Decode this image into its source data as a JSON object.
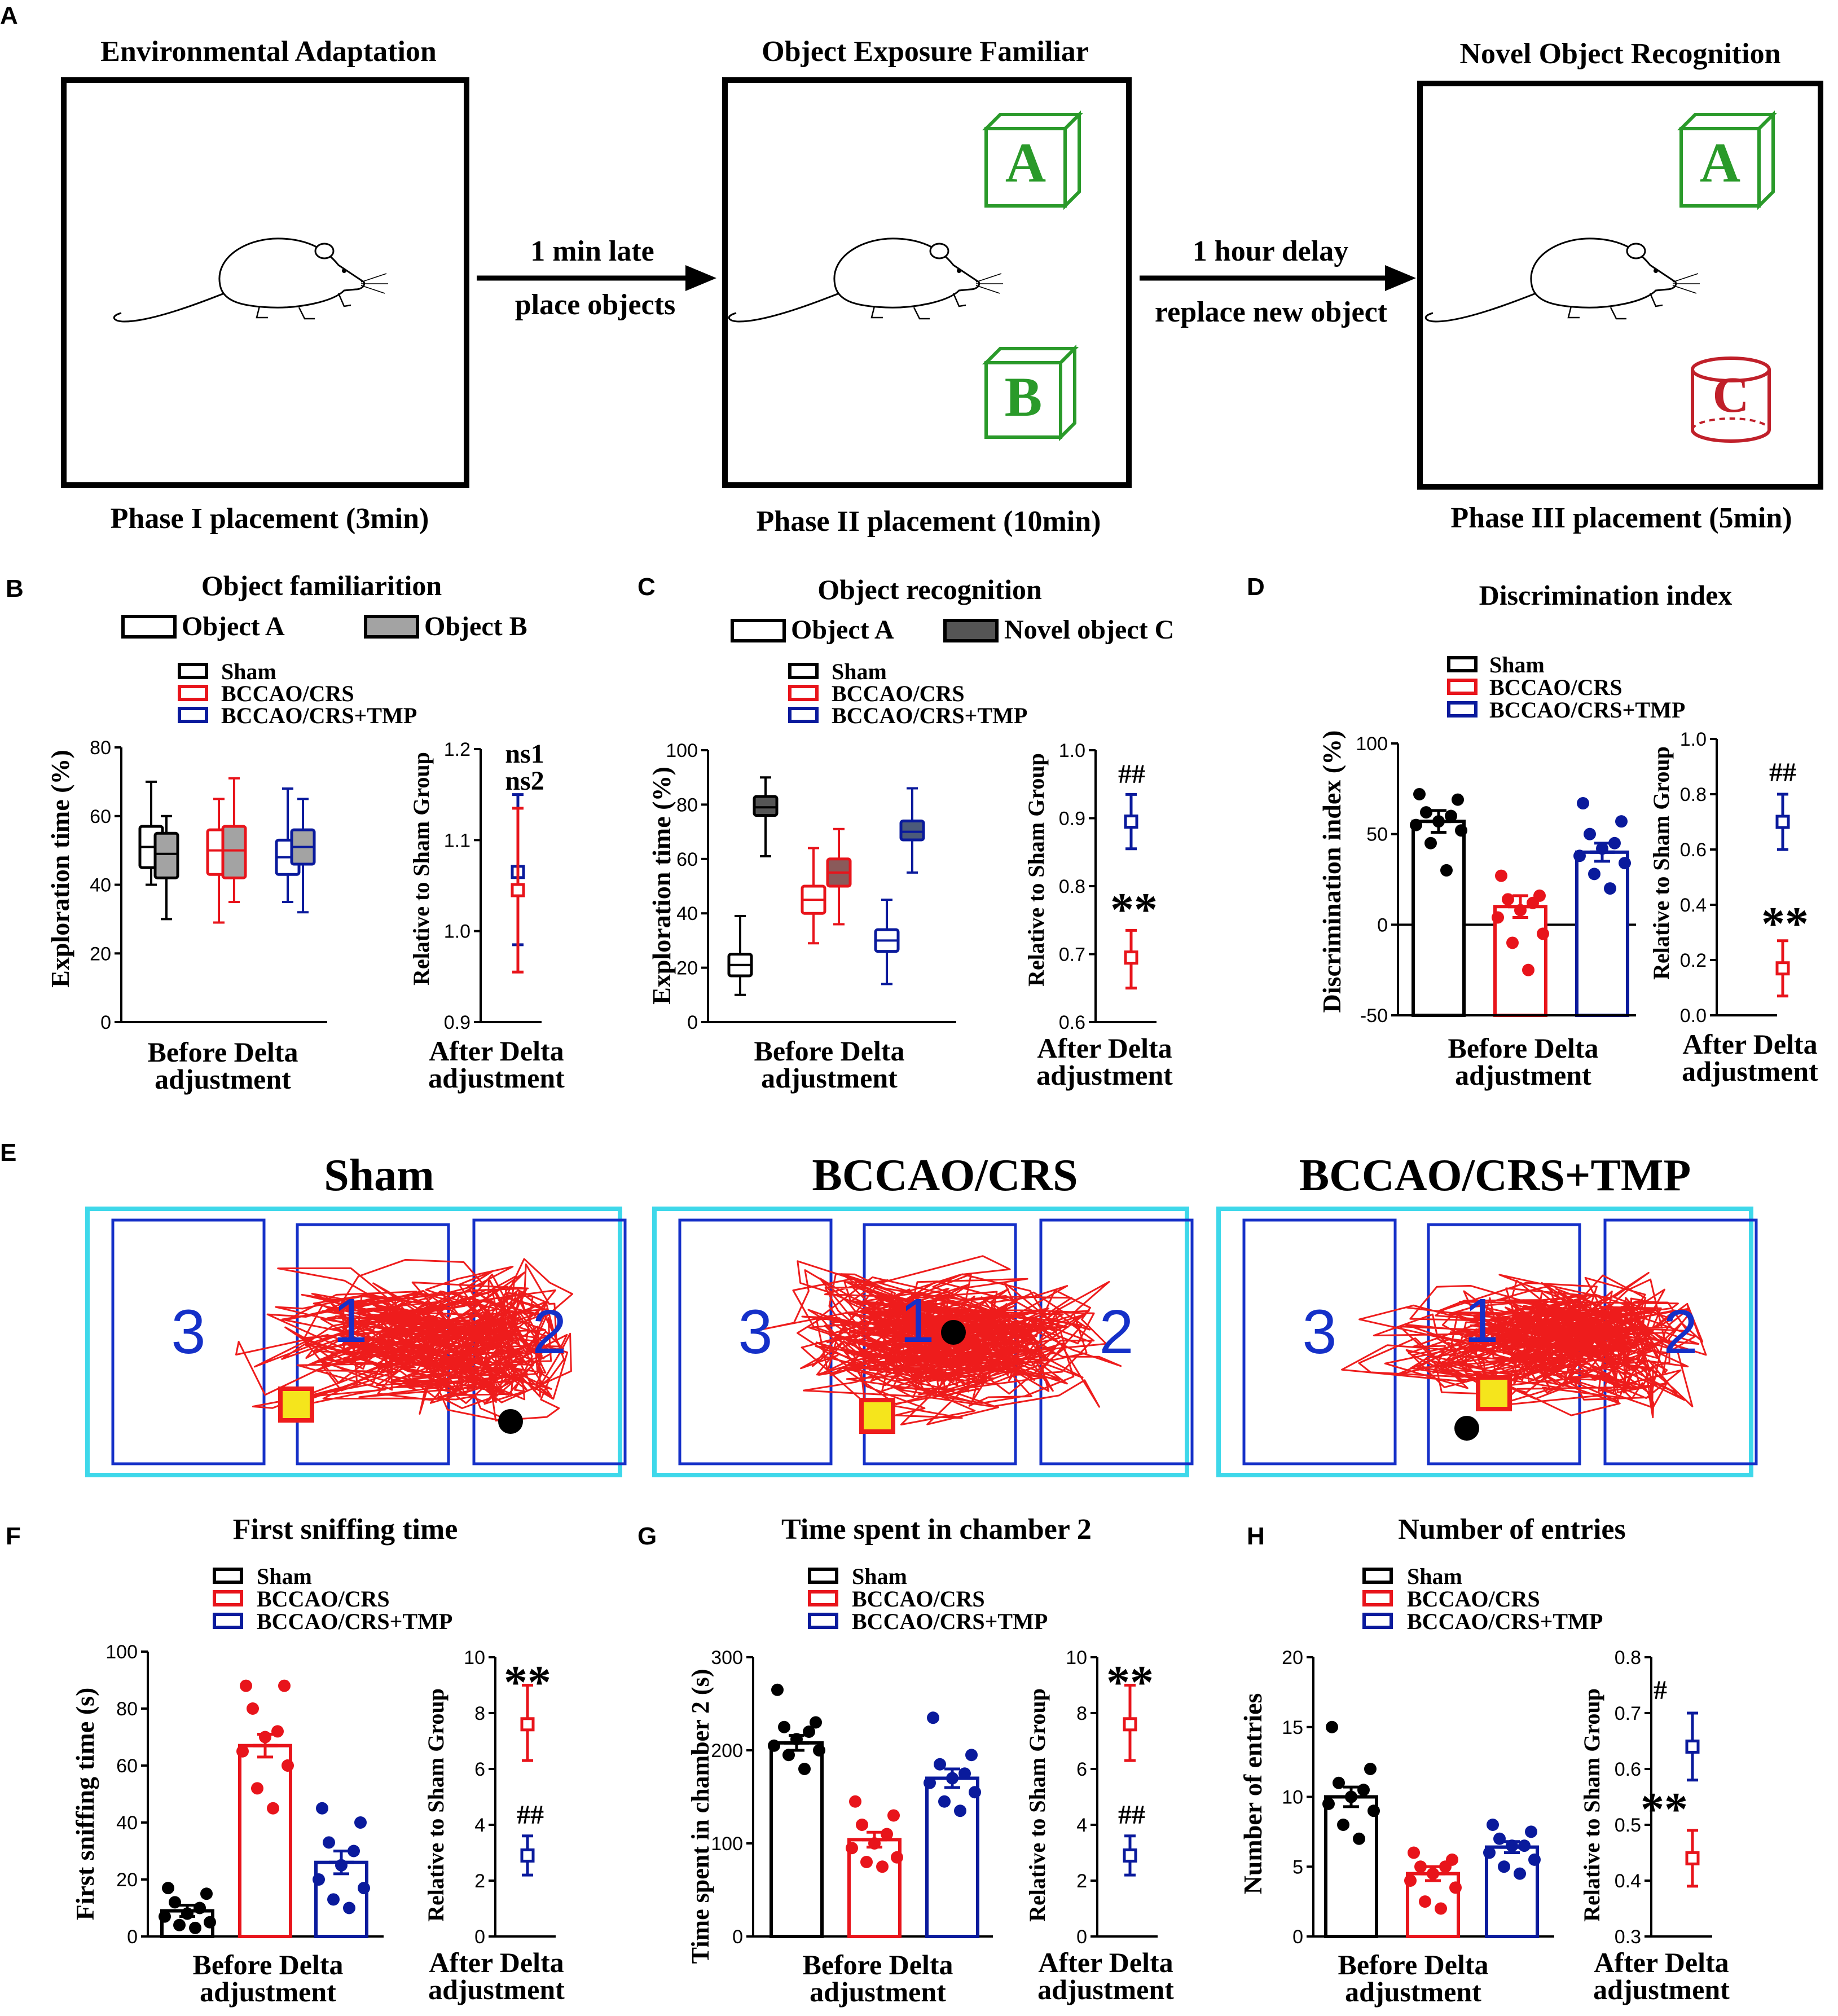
{
  "panel_letters": {
    "a": "A",
    "b": "B",
    "c": "C",
    "d": "D",
    "e": "E",
    "f": "F",
    "g": "G",
    "h": "H"
  },
  "colors": {
    "sham": "#000000",
    "crs": "#e8141b",
    "tmp": "#0a1a9c",
    "green": "#2a9a2a",
    "cyl": "#c0202a",
    "cyan": "#3ed8ea",
    "track": "#ee1c1c",
    "zone": "#1530c8"
  },
  "panel_a": {
    "phases": [
      {
        "title": "Environmental Adaptation",
        "caption": "Phase I placement (3min)"
      },
      {
        "title": "Object Exposure Familiar",
        "caption": "Phase II placement (10min)",
        "objects": [
          "A",
          "B"
        ]
      },
      {
        "title": "Novel Object Recognition",
        "caption": "Phase III placement (5min)",
        "objects": [
          "A",
          "C"
        ]
      }
    ],
    "arrow1": {
      "top": "1 min late",
      "bottom": "place objects"
    },
    "arrow2": {
      "top": "1 hour delay",
      "bottom": "replace new object"
    }
  },
  "legend": {
    "sham": "Sham",
    "crs": "BCCAO/CRS",
    "tmp": "BCCAO/CRS+TMP"
  },
  "common": {
    "before": "Before Delta",
    "after": "After Delta",
    "adjustment": "adjustment",
    "relative": "Relative to Sham Group"
  },
  "panel_b": {
    "title": "Object familiarition",
    "leg1": "Object A",
    "leg2": "Object B",
    "ylabel": "Exploration time (%)",
    "sig1": "ns1",
    "sig2": "ns2"
  },
  "panel_c": {
    "title": "Object recognition",
    "leg1": "Object A",
    "leg2": "Novel object C",
    "ylabel": "Exploration time (%)",
    "sig1": "##",
    "sig2": "**"
  },
  "panel_d": {
    "title": "Discrimination index",
    "ylabel": "Discrimination index (%)",
    "sig1": "##",
    "sig2": "**"
  },
  "panel_e": {
    "titles": [
      "Sham",
      "BCCAO/CRS",
      "BCCAO/CRS+TMP"
    ],
    "zones": [
      "3",
      "1",
      "2"
    ]
  },
  "panel_f": {
    "title": "First sniffing time",
    "ylabel": "First sniffing time (s)",
    "sig1": "**",
    "sig2": "##"
  },
  "panel_g": {
    "title": "Time spent in chamber 2",
    "ylabel": "Time spent in chamber 2 (s)",
    "sig1": "**",
    "sig2": "##"
  },
  "panel_h": {
    "title": "Number of entries",
    "ylabel": "Number of entries",
    "sig1": "#",
    "sig2": "**"
  },
  "chart_data": [
    {
      "id": "B-left",
      "type": "box",
      "ylim": [
        0,
        80
      ],
      "yticks": [
        "0",
        "20",
        "40",
        "60",
        "80"
      ],
      "boxes": [
        {
          "group": "sham",
          "object": "A",
          "min": 40,
          "q1": 45,
          "med": 51,
          "q3": 57,
          "max": 70
        },
        {
          "group": "sham",
          "object": "B",
          "min": 30,
          "q1": 42,
          "med": 49,
          "q3": 55,
          "max": 60
        },
        {
          "group": "crs",
          "object": "A",
          "min": 29,
          "q1": 43,
          "med": 50,
          "q3": 56,
          "max": 65
        },
        {
          "group": "crs",
          "object": "B",
          "min": 35,
          "q1": 42,
          "med": 50,
          "q3": 57,
          "max": 71
        },
        {
          "group": "tmp",
          "object": "A",
          "min": 35,
          "q1": 43,
          "med": 48,
          "q3": 53,
          "max": 68
        },
        {
          "group": "tmp",
          "object": "B",
          "min": 32,
          "q1": 46,
          "med": 51,
          "q3": 56,
          "max": 65
        }
      ]
    },
    {
      "id": "B-right",
      "type": "errorbar",
      "ylim": [
        0.9,
        1.2
      ],
      "yticks": [
        "0.9",
        "1.0",
        "1.1",
        "1.2"
      ],
      "points": [
        {
          "group": "tmp",
          "value": 1.065,
          "low": 0.985,
          "high": 1.15
        },
        {
          "group": "crs",
          "value": 1.045,
          "low": 0.955,
          "high": 1.135
        }
      ]
    },
    {
      "id": "C-left",
      "type": "box",
      "ylim": [
        0,
        100
      ],
      "yticks": [
        "0",
        "20",
        "40",
        "60",
        "80",
        "100"
      ],
      "boxes": [
        {
          "group": "sham",
          "object": "A",
          "min": 10,
          "q1": 17,
          "med": 21,
          "q3": 25,
          "max": 39
        },
        {
          "group": "sham",
          "object": "C",
          "min": 61,
          "q1": 76,
          "med": 79,
          "q3": 83,
          "max": 90
        },
        {
          "group": "crs",
          "object": "A",
          "min": 29,
          "q1": 40,
          "med": 45,
          "q3": 50,
          "max": 64
        },
        {
          "group": "crs",
          "object": "C",
          "min": 36,
          "q1": 50,
          "med": 55,
          "q3": 60,
          "max": 71
        },
        {
          "group": "tmp",
          "object": "A",
          "min": 14,
          "q1": 26,
          "med": 30,
          "q3": 34,
          "max": 45
        },
        {
          "group": "tmp",
          "object": "C",
          "min": 55,
          "q1": 67,
          "med": 70,
          "q3": 74,
          "max": 86
        }
      ]
    },
    {
      "id": "C-right",
      "type": "errorbar",
      "ylim": [
        0.6,
        1.0
      ],
      "yticks": [
        "0.6",
        "0.7",
        "0.8",
        "0.9",
        "1.0"
      ],
      "points": [
        {
          "group": "tmp",
          "value": 0.895,
          "low": 0.855,
          "high": 0.935
        },
        {
          "group": "crs",
          "value": 0.695,
          "low": 0.65,
          "high": 0.735
        }
      ]
    },
    {
      "id": "D-left",
      "type": "bar",
      "ylim": [
        -50,
        100
      ],
      "yticks": [
        "-50",
        "0",
        "50",
        "100"
      ],
      "bars": [
        {
          "group": "sham",
          "mean": 57,
          "sem": 6,
          "points": [
            72,
            69,
            62,
            60,
            57,
            55,
            52,
            45,
            30
          ]
        },
        {
          "group": "crs",
          "mean": 10,
          "sem": 6,
          "points": [
            27,
            16,
            14,
            12,
            8,
            4,
            -5,
            -10,
            -25
          ]
        },
        {
          "group": "tmp",
          "mean": 40,
          "sem": 5,
          "points": [
            67,
            57,
            50,
            45,
            42,
            38,
            34,
            28,
            20
          ]
        }
      ]
    },
    {
      "id": "D-right",
      "type": "errorbar",
      "ylim": [
        0,
        1
      ],
      "yticks": [
        "0.0",
        "0.2",
        "0.4",
        "0.6",
        "0.8",
        "1.0"
      ],
      "points": [
        {
          "group": "tmp",
          "value": 0.7,
          "low": 0.6,
          "high": 0.8
        },
        {
          "group": "crs",
          "value": 0.17,
          "low": 0.07,
          "high": 0.27
        }
      ]
    },
    {
      "id": "F-left",
      "type": "bar",
      "ylim": [
        0,
        100
      ],
      "yticks": [
        "0",
        "20",
        "40",
        "60",
        "80",
        "100"
      ],
      "bars": [
        {
          "group": "sham",
          "mean": 9,
          "sem": 2,
          "points": [
            17,
            15,
            12,
            10,
            8,
            7,
            5,
            4,
            3
          ]
        },
        {
          "group": "crs",
          "mean": 67,
          "sem": 4,
          "points": [
            88,
            88,
            80,
            72,
            70,
            65,
            60,
            52,
            45
          ]
        },
        {
          "group": "tmp",
          "mean": 26,
          "sem": 4,
          "points": [
            45,
            40,
            33,
            30,
            25,
            20,
            17,
            13,
            10
          ]
        }
      ]
    },
    {
      "id": "F-right",
      "type": "errorbar",
      "ylim": [
        0,
        10
      ],
      "yticks": [
        "0",
        "2",
        "4",
        "6",
        "8",
        "10"
      ],
      "points": [
        {
          "group": "crs",
          "value": 7.6,
          "low": 6.3,
          "high": 9.0
        },
        {
          "group": "tmp",
          "value": 2.9,
          "low": 2.2,
          "high": 3.6
        }
      ]
    },
    {
      "id": "G-left",
      "type": "bar",
      "ylim": [
        0,
        300
      ],
      "yticks": [
        "0",
        "100",
        "200",
        "300"
      ],
      "bars": [
        {
          "group": "sham",
          "mean": 208,
          "sem": 8,
          "points": [
            265,
            230,
            225,
            220,
            212,
            205,
            200,
            195,
            180
          ]
        },
        {
          "group": "crs",
          "mean": 104,
          "sem": 8,
          "points": [
            145,
            130,
            120,
            110,
            100,
            95,
            85,
            80,
            75
          ]
        },
        {
          "group": "tmp",
          "mean": 170,
          "sem": 10,
          "points": [
            235,
            195,
            185,
            175,
            170,
            165,
            155,
            145,
            135
          ]
        }
      ]
    },
    {
      "id": "G-right",
      "type": "errorbar",
      "ylim": [
        0,
        10
      ],
      "yticks": [
        "0",
        "2",
        "4",
        "6",
        "8",
        "10"
      ],
      "points": [
        {
          "group": "crs",
          "value": 7.6,
          "low": 6.3,
          "high": 9.0
        },
        {
          "group": "tmp",
          "value": 2.9,
          "low": 2.2,
          "high": 3.6
        }
      ]
    },
    {
      "id": "H-left",
      "type": "bar",
      "ylim": [
        0,
        20
      ],
      "yticks": [
        "0",
        "5",
        "10",
        "15",
        "20"
      ],
      "bars": [
        {
          "group": "sham",
          "mean": 10,
          "sem": 0.7,
          "points": [
            15,
            12,
            11,
            10.5,
            10,
            9.5,
            9,
            8,
            7
          ]
        },
        {
          "group": "crs",
          "mean": 4.5,
          "sem": 0.5,
          "points": [
            6,
            5.5,
            5,
            5,
            4.5,
            4,
            3.5,
            2.5,
            2
          ]
        },
        {
          "group": "tmp",
          "mean": 6.4,
          "sem": 0.4,
          "points": [
            8,
            7.5,
            7,
            6.5,
            6.5,
            6,
            5.5,
            5,
            4.5
          ]
        }
      ]
    },
    {
      "id": "H-right",
      "type": "errorbar",
      "ylim": [
        0.3,
        0.8
      ],
      "yticks": [
        "0.3",
        "0.4",
        "0.5",
        "0.6",
        "0.7",
        "0.8"
      ],
      "points": [
        {
          "group": "tmp",
          "value": 0.64,
          "low": 0.58,
          "high": 0.7
        },
        {
          "group": "crs",
          "value": 0.44,
          "low": 0.39,
          "high": 0.49
        }
      ]
    }
  ]
}
